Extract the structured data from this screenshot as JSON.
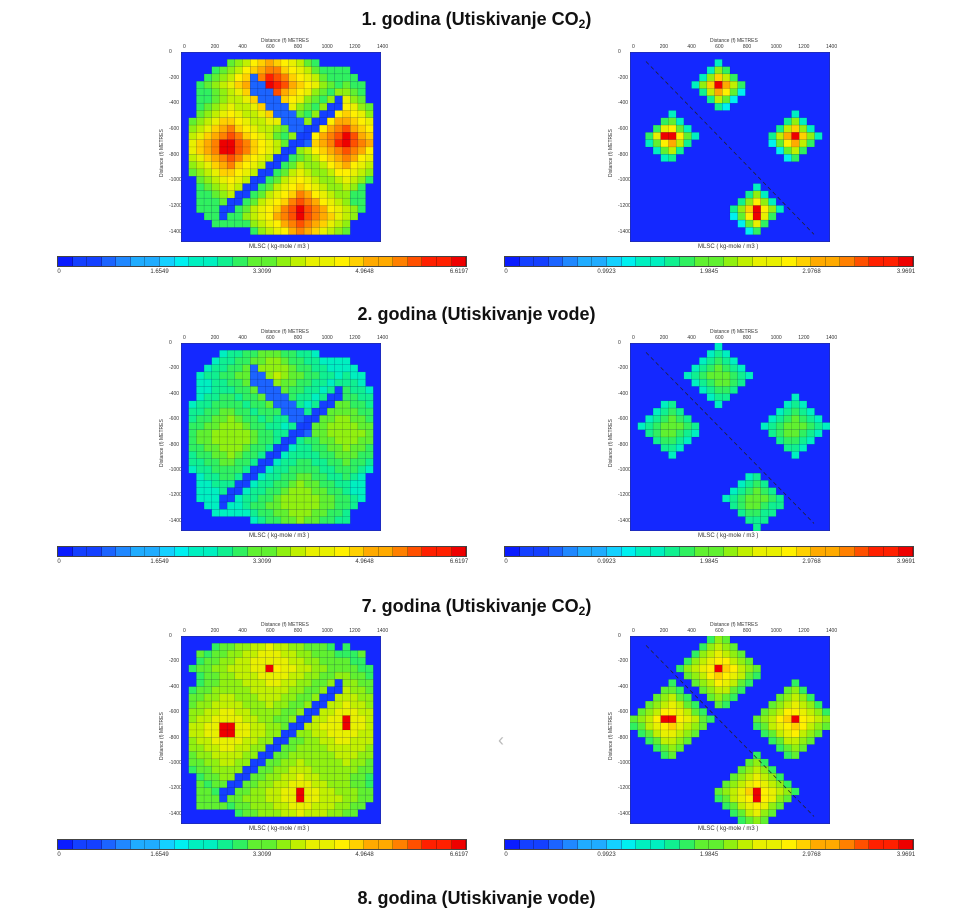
{
  "sections": [
    {
      "title": "1. godina (Utiskivanje CO",
      "sub": "2",
      "close": ")"
    },
    {
      "title": "2. godina (Utiskivanje vode)",
      "sub": "",
      "close": ""
    },
    {
      "title": "7. godina (Utiskivanje CO",
      "sub": "2",
      "close": ")"
    },
    {
      "title": "8. godina (Utiskivanje vode)",
      "sub": "",
      "close": ""
    }
  ],
  "plot": {
    "x_axis_title": "Distance (f)    METRES",
    "y_axis_title": "Distance (f)    METRES",
    "x_ticks": [
      "0",
      "200",
      "400",
      "600",
      "800",
      "1000",
      "1200",
      "1400"
    ],
    "y_ticks": [
      "0",
      "-200",
      "-400",
      "-600",
      "-800",
      "-1000",
      "-1200",
      "-1400"
    ],
    "unit_label": "MLSC ( kg-mole / m3 )"
  },
  "colorbars": {
    "left": {
      "labels": [
        "0",
        "1.6549",
        "3.3099",
        "4.9648",
        "6.6197"
      ]
    },
    "right": {
      "labels": [
        "0",
        "0.9923",
        "1.9845",
        "2.9768",
        "3.9691"
      ]
    }
  },
  "colors": {
    "background_field": "#1428ff",
    "scale": [
      "#0a1cff",
      "#1440ff",
      "#1c64ff",
      "#2088ff",
      "#20acff",
      "#14d0ff",
      "#00f0f0",
      "#00f0c0",
      "#10f090",
      "#30f060",
      "#60f030",
      "#90f010",
      "#c0f000",
      "#e8f000",
      "#fff000",
      "#ffd000",
      "#ffaa00",
      "#ff8000",
      "#ff5000",
      "#ff2000",
      "#ee0000"
    ]
  },
  "icons": [
    "chevron-left-icon"
  ]
}
